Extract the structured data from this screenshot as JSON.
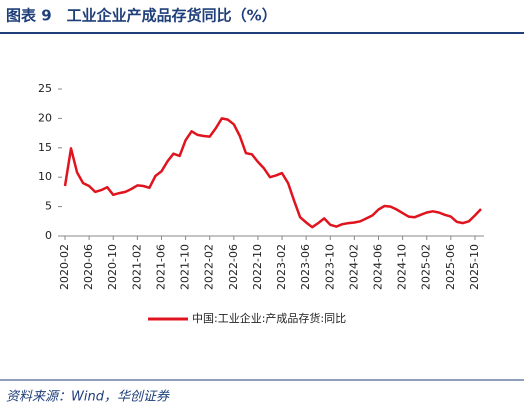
{
  "chart_data": {
    "type": "line",
    "title": "图表 9　工业企业产成品存货同比（%）",
    "source": "资料来源：Wind，华创证券",
    "categories": [
      "2020-02",
      null,
      null,
      null,
      "2020-06",
      null,
      null,
      null,
      "2020-10",
      null,
      null,
      null,
      "2021-02",
      null,
      null,
      null,
      "2021-06",
      null,
      null,
      null,
      "2021-10",
      null,
      null,
      null,
      "2022-02",
      null,
      null,
      null,
      "2022-06",
      null,
      null,
      null,
      "2022-10",
      null,
      null,
      null,
      "2023-02",
      null,
      null,
      null,
      "2023-06",
      null,
      null,
      null,
      "2023-10",
      null,
      null,
      null,
      "2024-02",
      null,
      null,
      null,
      "2024-06",
      null,
      null,
      null,
      "2024-10",
      null,
      null,
      null,
      "2025-02",
      null,
      null,
      null,
      "2025-06",
      null,
      null,
      null,
      "2025-10",
      null
    ],
    "series": [
      {
        "name": "中国:工业企业:产成品存货:同比",
        "color": "#e0141e",
        "values": [
          8.5,
          14.9,
          10.8,
          9.0,
          8.5,
          7.5,
          7.8,
          8.3,
          7.0,
          7.3,
          7.5,
          8.0,
          8.6,
          8.5,
          8.2,
          10.2,
          11.0,
          12.7,
          14.0,
          13.6,
          16.3,
          17.8,
          17.2,
          17.0,
          16.9,
          18.3,
          20.0,
          19.8,
          19.0,
          17.0,
          14.1,
          13.9,
          12.6,
          11.5,
          10.0,
          10.3,
          10.7,
          9.0,
          6.0,
          3.2,
          2.3,
          1.5,
          2.2,
          3.0,
          1.9,
          1.6,
          2.0,
          2.2,
          2.3,
          2.5,
          3.0,
          3.5,
          4.5,
          5.1,
          5.0,
          4.5,
          3.9,
          3.3,
          3.2,
          3.6,
          4.0,
          4.2,
          4.0,
          3.6,
          3.3,
          2.4,
          2.2,
          2.5,
          3.5,
          4.6
        ]
      }
    ],
    "ylim": [
      0,
      25
    ],
    "yticks": [
      0,
      5,
      10,
      15,
      20,
      25
    ],
    "grid": false
  }
}
